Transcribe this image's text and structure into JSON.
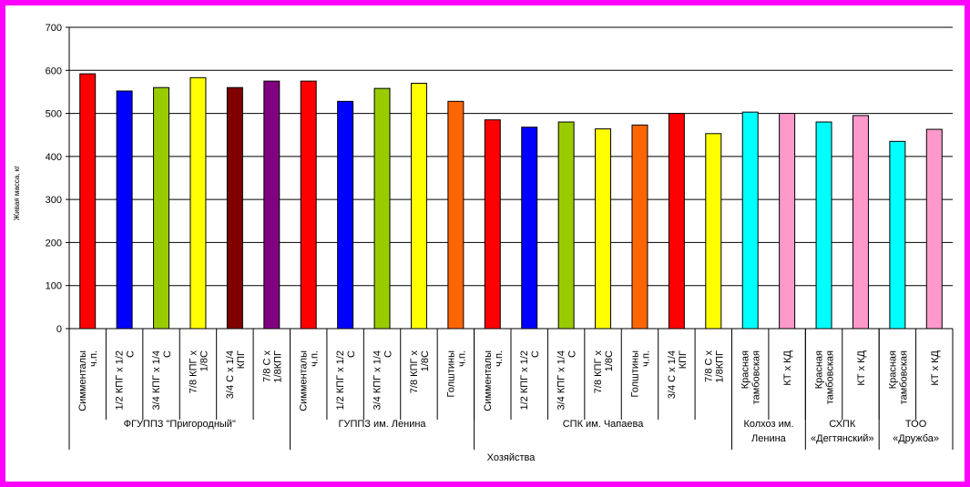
{
  "chart_data": {
    "type": "bar",
    "ylabel": "Живая масса, кг",
    "xlabel": "Хозяйства",
    "ylim": [
      0,
      700
    ],
    "yticks": [
      "0",
      "100",
      "200",
      "300",
      "400",
      "500",
      "600",
      "700"
    ],
    "grid": true,
    "legend": "none",
    "categories": [
      {
        "lines": [
          "Симменталы",
          "ч.п."
        ],
        "value": 592,
        "color": "#ff0000"
      },
      {
        "lines": [
          "1/2 КПГ х 1/2",
          "С"
        ],
        "value": 552,
        "color": "#0000ff"
      },
      {
        "lines": [
          "3/4 КПГ х 1/4",
          "С"
        ],
        "value": 560,
        "color": "#99cc00"
      },
      {
        "lines": [
          "7/8 КПГ х",
          "1/8С"
        ],
        "value": 583,
        "color": "#ffff00"
      },
      {
        "lines": [
          "3/4 С х 1/4",
          "КПГ"
        ],
        "value": 560,
        "color": "#800000"
      },
      {
        "lines": [
          "7/8 С х",
          "1/8КПГ"
        ],
        "value": 575,
        "color": "#800080"
      },
      {
        "lines": [
          "Симменталы",
          "ч.п."
        ],
        "value": 575,
        "color": "#ff0000"
      },
      {
        "lines": [
          "1/2 КПГ х 1/2",
          "С"
        ],
        "value": 528,
        "color": "#0000ff"
      },
      {
        "lines": [
          "3/4 КПГ х 1/4",
          "С"
        ],
        "value": 558,
        "color": "#99cc00"
      },
      {
        "lines": [
          "7/8 КПГ х",
          "1/8С"
        ],
        "value": 570,
        "color": "#ffff00"
      },
      {
        "lines": [
          "Голштины",
          "ч.п."
        ],
        "value": 528,
        "color": "#ff6600"
      },
      {
        "lines": [
          "Симменталы",
          "ч.п."
        ],
        "value": 485,
        "color": "#ff0000"
      },
      {
        "lines": [
          "1/2 КПГ х 1/2",
          "С"
        ],
        "value": 468,
        "color": "#0000ff"
      },
      {
        "lines": [
          "3/4 КПГ х 1/4",
          "С"
        ],
        "value": 480,
        "color": "#99cc00"
      },
      {
        "lines": [
          "7/8 КПГ х",
          "1/8С"
        ],
        "value": 464,
        "color": "#ffff00"
      },
      {
        "lines": [
          "Голштины",
          "ч.п."
        ],
        "value": 473,
        "color": "#ff6600"
      },
      {
        "lines": [
          "3/4 С х 1/4",
          "КПГ"
        ],
        "value": 500,
        "color": "#ff0000"
      },
      {
        "lines": [
          "7/8 С х",
          "1/8КПГ"
        ],
        "value": 453,
        "color": "#ffff00"
      },
      {
        "lines": [
          "Красная",
          "тамбовская"
        ],
        "value": 503,
        "color": "#00ffff"
      },
      {
        "lines": [
          "КТ х КД"
        ],
        "value": 500,
        "color": "#ff99cc"
      },
      {
        "lines": [
          "Красная",
          "тамбовская"
        ],
        "value": 480,
        "color": "#00ffff"
      },
      {
        "lines": [
          "КТ х КД"
        ],
        "value": 495,
        "color": "#ff99cc"
      },
      {
        "lines": [
          "Красная",
          "тамбовская"
        ],
        "value": 435,
        "color": "#00ffff"
      },
      {
        "lines": [
          "КТ х КД"
        ],
        "value": 463,
        "color": "#ff99cc"
      }
    ],
    "groups": [
      {
        "lines": [
          "ФГУППЗ \"Пригородный\""
        ],
        "count": 6
      },
      {
        "lines": [
          "ГУППЗ им. Ленина"
        ],
        "count": 5
      },
      {
        "lines": [
          "СПК им. Чапаева"
        ],
        "count": 7
      },
      {
        "lines": [
          "Колхоз им.",
          "Ленина"
        ],
        "count": 2
      },
      {
        "lines": [
          "СХПК",
          "«Дегтянский»"
        ],
        "count": 2
      },
      {
        "lines": [
          "ТОО",
          "«Дружба»"
        ],
        "count": 2
      }
    ]
  }
}
